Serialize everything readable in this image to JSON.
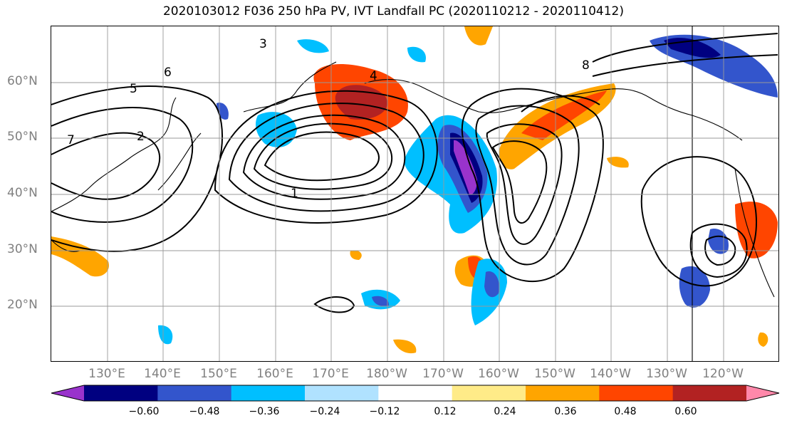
{
  "title": "2020103012 F036 250 hPa PV, IVT Landfall PC (2020110212 - 2020110412)",
  "lat_labels": [
    "60°N",
    "50°N",
    "40°N",
    "30°N",
    "20°N"
  ],
  "lon_labels": [
    "130°E",
    "140°E",
    "150°E",
    "160°E",
    "170°E",
    "180°W",
    "170°W",
    "160°W",
    "150°W",
    "140°W",
    "130°W",
    "120°W"
  ],
  "contour_labels": [
    "1",
    "2",
    "3",
    "4",
    "5",
    "6",
    "7",
    "8"
  ],
  "colorbar": {
    "ticks": [
      "−0.60",
      "−0.48",
      "−0.36",
      "−0.24",
      "−0.12",
      "0.12",
      "0.24",
      "0.36",
      "0.48",
      "0.60"
    ],
    "colors": [
      "#9933cc",
      "#000080",
      "#3355cc",
      "#00bfff",
      "#b0e2ff",
      "#ffffff",
      "#ffeb88",
      "#ffa500",
      "#ff4500",
      "#b22222",
      "#ff88aa"
    ]
  },
  "map": {
    "type": "map",
    "projection": "cylindrical",
    "lat_range": [
      10,
      70
    ],
    "lon_range": [
      120,
      250
    ],
    "grid": true
  }
}
